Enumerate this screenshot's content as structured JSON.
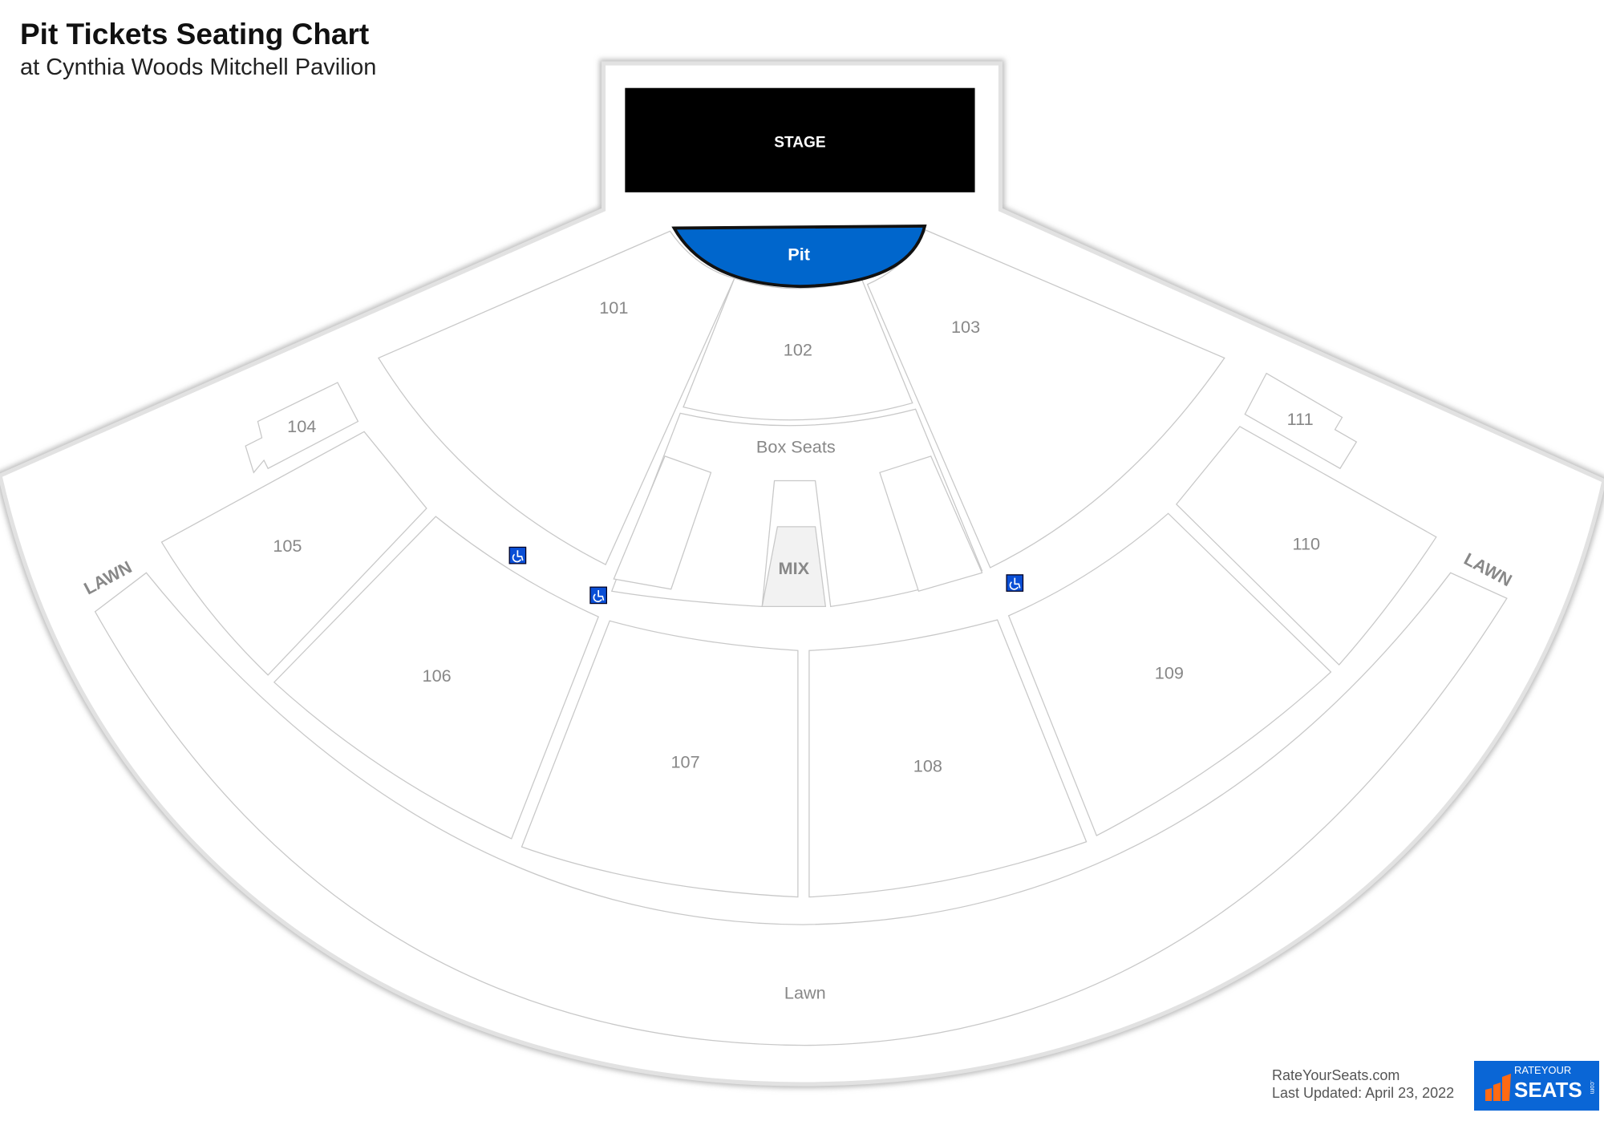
{
  "header": {
    "title": "Pit Tickets Seating Chart",
    "subtitle": "at Cynthia Woods Mitchell Pavilion"
  },
  "map": {
    "stage_label": "STAGE",
    "highlighted_section": "Pit",
    "highlight_color": "#0066cc",
    "sections": {
      "s101": "101",
      "s102": "102",
      "s103": "103",
      "s104": "104",
      "s105": "105",
      "s106": "106",
      "s107": "107",
      "s108": "108",
      "s109": "109",
      "s110": "110",
      "s111": "111",
      "box": "Box Seats",
      "mix": "MIX",
      "lawn": "Lawn",
      "lawn_left": "LAWN",
      "lawn_right": "LAWN"
    },
    "icons": [
      "wheelchair-icon",
      "wheelchair-icon",
      "wheelchair-icon"
    ]
  },
  "footer": {
    "site": "RateYourSeats.com",
    "updated": "Last Updated: April 23, 2022",
    "logo_top": "RATEYOUR",
    "logo_main": "SEATS",
    "logo_suffix": ".com"
  }
}
